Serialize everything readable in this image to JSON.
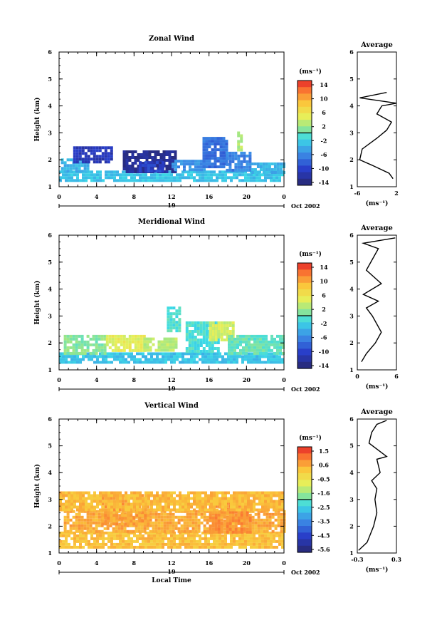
{
  "chart_data": [
    {
      "type": "heatmap",
      "title": "Zonal Wind",
      "ylabel": "Height (km)",
      "x_ticks": [
        "0",
        "4",
        "8",
        "12",
        "16",
        "20",
        "0"
      ],
      "y_ticks": [
        "1",
        "2",
        "3",
        "4",
        "5",
        "6"
      ],
      "xlim": [
        0,
        24
      ],
      "ylim": [
        1,
        6
      ],
      "day_label": "19",
      "date_label": "Oct 2002",
      "colorbar": {
        "unit": "(ms⁻¹)",
        "ticks": [
          "14",
          "10",
          "6",
          "2",
          "-2",
          "-6",
          "-10",
          "-14"
        ],
        "range": [
          -16,
          16
        ]
      },
      "data_regions": [
        {
          "x0": 0.0,
          "x1": 24.0,
          "y0": 1.28,
          "y1": 1.6,
          "value": -3
        },
        {
          "x0": 0.2,
          "x1": 3.0,
          "y0": 1.6,
          "y1": 2.05,
          "value": -4
        },
        {
          "x0": 1.5,
          "x1": 5.5,
          "y0": 1.9,
          "y1": 2.5,
          "value": -12
        },
        {
          "x0": 6.8,
          "x1": 12.3,
          "y0": 1.6,
          "y1": 2.35,
          "value": -14
        },
        {
          "x0": 8.5,
          "x1": 11.0,
          "y0": 1.6,
          "y1": 1.95,
          "value": -11
        },
        {
          "x0": 12.0,
          "x1": 15.5,
          "y0": 1.6,
          "y1": 2.0,
          "value": -6
        },
        {
          "x0": 15.3,
          "x1": 17.8,
          "y0": 1.7,
          "y1": 2.85,
          "value": -8
        },
        {
          "x0": 17.8,
          "x1": 20.5,
          "y0": 1.6,
          "y1": 2.3,
          "value": -7
        },
        {
          "x0": 20.5,
          "x1": 24.0,
          "y0": 1.5,
          "y1": 1.9,
          "value": -4
        },
        {
          "x0": 19.0,
          "x1": 19.5,
          "y0": 2.4,
          "y1": 3.05,
          "value": 3
        }
      ],
      "average_profile": {
        "title": "Average",
        "xlabel": "(ms⁻¹)",
        "x_ticks": [
          "-6",
          "2"
        ],
        "xlim": [
          -6,
          2
        ],
        "y_ticks": [
          "1",
          "2",
          "3",
          "4",
          "5",
          "6"
        ],
        "points": [
          [
            1.3,
            1.3
          ],
          [
            0.5,
            1.5
          ],
          [
            -3,
            1.8
          ],
          [
            -5.5,
            2.0
          ],
          [
            -5,
            2.4
          ],
          [
            -2,
            2.8
          ],
          [
            0,
            3.1
          ],
          [
            1,
            3.4
          ],
          [
            -2,
            3.7
          ],
          [
            -1,
            4.0
          ],
          [
            2,
            4.1
          ],
          [
            -5.5,
            4.3
          ],
          [
            0,
            4.5
          ]
        ]
      }
    },
    {
      "type": "heatmap",
      "title": "Meridional Wind",
      "ylabel": "Height (km)",
      "x_ticks": [
        "0",
        "4",
        "8",
        "12",
        "16",
        "20",
        "0"
      ],
      "y_ticks": [
        "1",
        "2",
        "3",
        "4",
        "5",
        "6"
      ],
      "xlim": [
        0,
        24
      ],
      "ylim": [
        1,
        6
      ],
      "day_label": "19",
      "date_label": "Oct 2002",
      "colorbar": {
        "unit": "(ms⁻¹)",
        "ticks": [
          "14",
          "10",
          "6",
          "2",
          "-2",
          "-6",
          "-10",
          "-14"
        ],
        "range": [
          -16,
          16
        ]
      },
      "data_regions": [
        {
          "x0": 0.0,
          "x1": 24.0,
          "y0": 1.3,
          "y1": 1.65,
          "value": -3
        },
        {
          "x0": 0.5,
          "x1": 5.0,
          "y0": 1.65,
          "y1": 2.3,
          "value": 1
        },
        {
          "x0": 5.0,
          "x1": 9.0,
          "y0": 1.7,
          "y1": 2.3,
          "value": 5
        },
        {
          "x0": 9.0,
          "x1": 12.5,
          "y0": 1.7,
          "y1": 2.2,
          "value": 3
        },
        {
          "x0": 13.5,
          "x1": 17.0,
          "y0": 1.7,
          "y1": 2.8,
          "value": -1
        },
        {
          "x0": 16.0,
          "x1": 18.5,
          "y0": 2.1,
          "y1": 2.8,
          "value": 4
        },
        {
          "x0": 18.0,
          "x1": 24.0,
          "y0": 1.65,
          "y1": 2.3,
          "value": 0
        },
        {
          "x0": 11.5,
          "x1": 13.0,
          "y0": 2.4,
          "y1": 3.35,
          "value": -1
        }
      ],
      "average_profile": {
        "title": "Average",
        "xlabel": "(ms⁻¹)",
        "x_ticks": [
          "0",
          "6"
        ],
        "xlim": [
          -0.5,
          6
        ],
        "y_ticks": [
          "1",
          "2",
          "3",
          "4",
          "5",
          "6"
        ],
        "points": [
          [
            0.2,
            1.3
          ],
          [
            1.0,
            1.6
          ],
          [
            2.5,
            2.0
          ],
          [
            3.5,
            2.4
          ],
          [
            2.0,
            3.0
          ],
          [
            1.0,
            3.3
          ],
          [
            3.0,
            3.55
          ],
          [
            0.5,
            3.8
          ],
          [
            3.5,
            4.2
          ],
          [
            1.0,
            4.7
          ],
          [
            3.0,
            5.5
          ],
          [
            0.5,
            5.7
          ],
          [
            5.8,
            5.9
          ]
        ]
      }
    },
    {
      "type": "heatmap",
      "title": "Vertical Wind",
      "ylabel": "Height (km)",
      "xlabel": "Local Time",
      "x_ticks": [
        "0",
        "4",
        "8",
        "12",
        "16",
        "20",
        "0"
      ],
      "y_ticks": [
        "1",
        "2",
        "3",
        "4",
        "5",
        "6"
      ],
      "xlim": [
        0,
        24
      ],
      "ylim": [
        1,
        6
      ],
      "day_label": "19",
      "date_label": "Oct 2002",
      "colorbar": {
        "unit": "(ms⁻¹)",
        "ticks": [
          "1.5",
          "0.6",
          "-0.5",
          "-1.6",
          "-2.5",
          "-3.5",
          "-4.5",
          "-5.6"
        ],
        "range": [
          -6,
          2
        ]
      },
      "data_regions": [
        {
          "x0": 0.0,
          "x1": 24.0,
          "y0": 1.25,
          "y1": 1.8,
          "value": 0.3
        },
        {
          "x0": 0.5,
          "x1": 24.0,
          "y0": 1.8,
          "y1": 2.6,
          "value": 0.6
        },
        {
          "x0": 4.5,
          "x1": 9.5,
          "y0": 2.1,
          "y1": 3.2,
          "value": 0.7
        },
        {
          "x0": 16.0,
          "x1": 20.5,
          "y0": 1.8,
          "y1": 3.0,
          "value": 0.9
        },
        {
          "x0": 0.0,
          "x1": 24.0,
          "y0": 2.6,
          "y1": 3.3,
          "value": 0.4
        }
      ],
      "average_profile": {
        "title": "Average",
        "xlabel": "(ms⁻¹)",
        "x_ticks": [
          "-0.3",
          "0.3"
        ],
        "xlim": [
          -0.3,
          0.3
        ],
        "y_ticks": [
          "1",
          "2",
          "3",
          "4",
          "5",
          "6"
        ],
        "points": [
          [
            -0.28,
            1.1
          ],
          [
            -0.15,
            1.4
          ],
          [
            -0.05,
            2.0
          ],
          [
            0.0,
            2.5
          ],
          [
            -0.03,
            3.0
          ],
          [
            0.0,
            3.4
          ],
          [
            -0.08,
            3.7
          ],
          [
            0.05,
            4.0
          ],
          [
            0.0,
            4.5
          ],
          [
            0.15,
            4.6
          ],
          [
            -0.12,
            5.1
          ],
          [
            -0.08,
            5.5
          ],
          [
            0.0,
            5.8
          ],
          [
            0.15,
            5.95
          ]
        ]
      }
    }
  ]
}
